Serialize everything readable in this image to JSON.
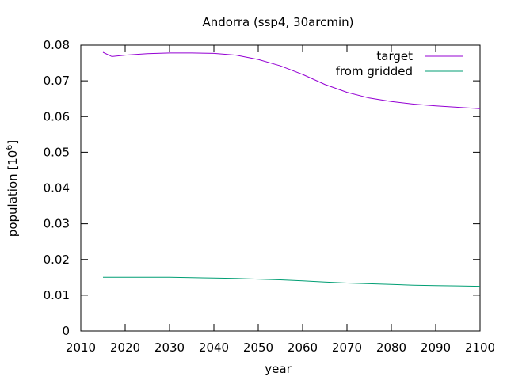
{
  "chart_data": {
    "type": "line",
    "title": "Andorra (ssp4, 30arcmin)",
    "xlabel": "year",
    "ylabel_main": "population [10",
    "ylabel_sup": "6",
    "ylabel_close": "]",
    "xlim": [
      2010,
      2100
    ],
    "ylim": [
      0,
      0.08
    ],
    "xticks": [
      "2010",
      "2020",
      "2030",
      "2040",
      "2050",
      "2060",
      "2070",
      "2080",
      "2090",
      "2100"
    ],
    "yticks": [
      "0",
      "0.01",
      "0.02",
      "0.03",
      "0.04",
      "0.05",
      "0.06",
      "0.07",
      "0.08"
    ],
    "grid": false,
    "legend_position": "top-right",
    "series": [
      {
        "name": "target",
        "color": "#9400d3",
        "x": [
          2015,
          2017,
          2020,
          2025,
          2030,
          2035,
          2040,
          2045,
          2050,
          2055,
          2060,
          2065,
          2070,
          2075,
          2080,
          2085,
          2090,
          2095,
          2100
        ],
        "y": [
          0.078,
          0.0768,
          0.0772,
          0.0776,
          0.0778,
          0.0778,
          0.0777,
          0.0772,
          0.076,
          0.0742,
          0.0718,
          0.069,
          0.0668,
          0.0652,
          0.0642,
          0.0635,
          0.063,
          0.0626,
          0.0622
        ]
      },
      {
        "name": "from gridded",
        "color": "#009e73",
        "x": [
          2015,
          2020,
          2025,
          2030,
          2035,
          2040,
          2045,
          2050,
          2055,
          2060,
          2065,
          2070,
          2075,
          2080,
          2085,
          2090,
          2095,
          2100
        ],
        "y": [
          0.015,
          0.015,
          0.015,
          0.015,
          0.0149,
          0.0148,
          0.0147,
          0.0145,
          0.0143,
          0.014,
          0.0137,
          0.0134,
          0.0132,
          0.013,
          0.0128,
          0.0127,
          0.0126,
          0.0125
        ]
      }
    ]
  }
}
